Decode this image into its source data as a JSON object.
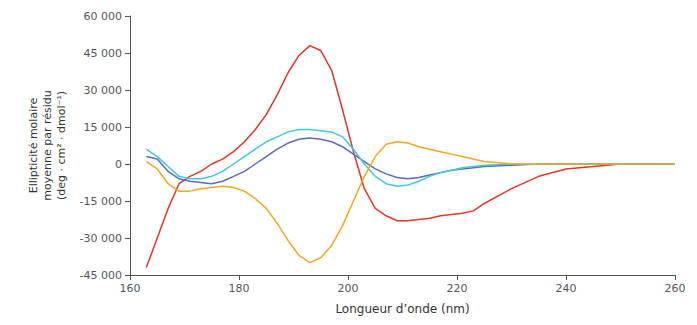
{
  "chart_data": {
    "type": "line",
    "xlabel": "Longueur d’onde (nm)",
    "ylabel": "Ellipticité molaire\nmoyenne par résidu\n(deg · cm² · dmol⁻¹)",
    "xlim": [
      160,
      260
    ],
    "ylim": [
      -45000,
      60000
    ],
    "xticks": [
      160,
      180,
      200,
      220,
      240,
      260
    ],
    "yticks": [
      {
        "value": -45000,
        "label": "-45 000"
      },
      {
        "value": -30000,
        "label": "-30 000"
      },
      {
        "value": -15000,
        "label": "-15 000"
      },
      0,
      {
        "value": 15000,
        "label": "15 000"
      },
      {
        "value": 30000,
        "label": "30 000"
      },
      {
        "value": 45000,
        "label": "45 000"
      },
      {
        "value": 60000,
        "label": "60 000"
      }
    ],
    "grid": false,
    "x": [
      163,
      165,
      167,
      169,
      171,
      173,
      175,
      177,
      179,
      181,
      183,
      185,
      187,
      189,
      191,
      193,
      195,
      197,
      199,
      201,
      203,
      205,
      207,
      209,
      211,
      213,
      215,
      217,
      219,
      221,
      223,
      225,
      230,
      235,
      240,
      245,
      250,
      255,
      260
    ],
    "series": [
      {
        "color": "#e8352a",
        "values": [
          -42000,
          -30000,
          -18000,
          -8000,
          -5000,
          -3000,
          0,
          2000,
          5000,
          9000,
          14000,
          20000,
          28000,
          37000,
          44000,
          48000,
          46000,
          38000,
          22000,
          5000,
          -10000,
          -18000,
          -21000,
          -23000,
          -23000,
          -22500,
          -22000,
          -21000,
          -20500,
          -20000,
          -19000,
          -16000,
          -10000,
          -5000,
          -2000,
          -1000,
          0,
          0,
          0
        ]
      },
      {
        "color": "#5b6abf",
        "values": [
          3000,
          2000,
          -3000,
          -6000,
          -7000,
          -7500,
          -8000,
          -7000,
          -5000,
          -3000,
          0,
          3000,
          6000,
          8500,
          10000,
          10500,
          10000,
          9000,
          7000,
          4000,
          1000,
          -2000,
          -4000,
          -5500,
          -6000,
          -5500,
          -4500,
          -3500,
          -2500,
          -2000,
          -1500,
          -1000,
          -500,
          0,
          0,
          0,
          0,
          0,
          0
        ]
      },
      {
        "color": "#43c8d8",
        "values": [
          6000,
          3000,
          -1000,
          -5000,
          -6000,
          -6000,
          -5000,
          -3000,
          0,
          3000,
          6000,
          9000,
          11000,
          13000,
          14000,
          14000,
          13500,
          13000,
          11000,
          6000,
          0,
          -5000,
          -8000,
          -9000,
          -8500,
          -7000,
          -5000,
          -3500,
          -2500,
          -1500,
          -1000,
          -500,
          0,
          0,
          0,
          0,
          0,
          0,
          0
        ]
      },
      {
        "color": "#f5a623",
        "values": [
          1000,
          -2000,
          -8000,
          -11000,
          -11000,
          -10000,
          -9500,
          -9000,
          -9500,
          -11000,
          -14000,
          -18000,
          -24000,
          -31000,
          -37000,
          -40000,
          -38000,
          -33000,
          -25000,
          -15000,
          -5000,
          3000,
          8000,
          9000,
          8500,
          7000,
          6000,
          5000,
          4000,
          3000,
          2000,
          1000,
          0,
          0,
          0,
          0,
          0,
          0,
          0
        ]
      }
    ]
  }
}
